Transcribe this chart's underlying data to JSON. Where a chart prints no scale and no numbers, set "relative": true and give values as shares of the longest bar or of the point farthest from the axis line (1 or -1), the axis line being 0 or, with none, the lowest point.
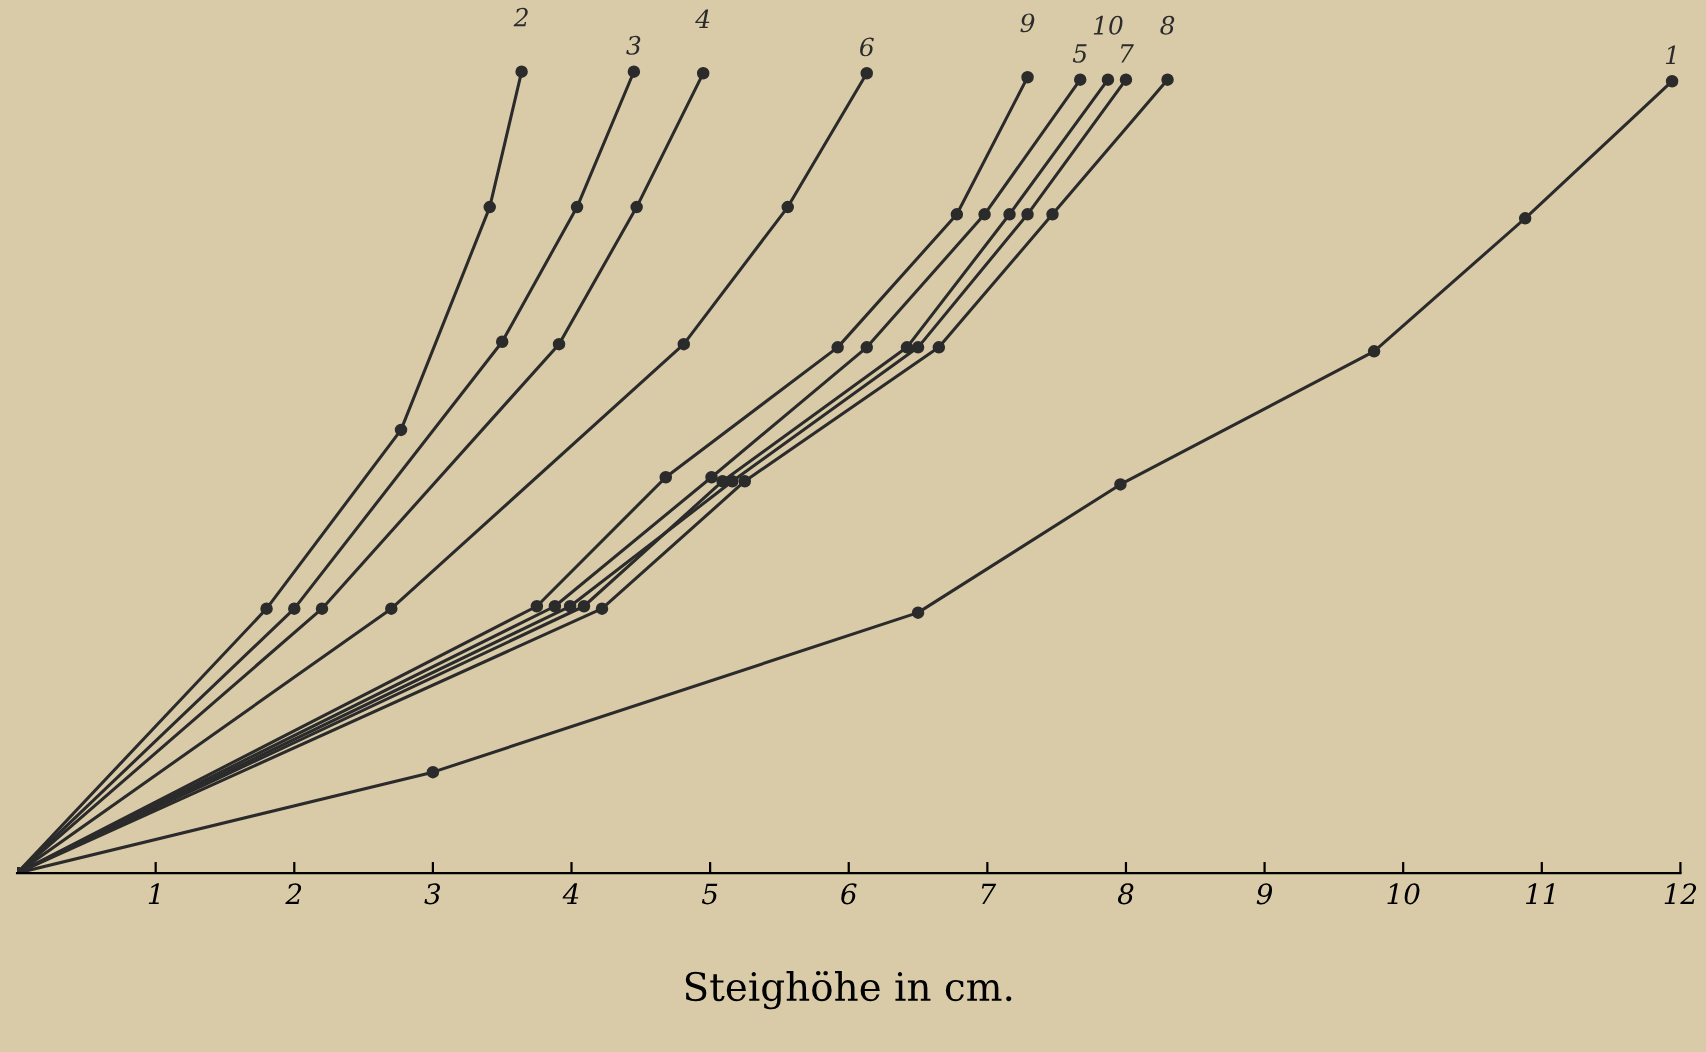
{
  "chart_data": {
    "type": "line",
    "relative": true,
    "xlabel": "Steighöhe in cm.",
    "xlim": [
      0,
      12
    ],
    "xticks": [
      1,
      2,
      3,
      4,
      5,
      6,
      7,
      8,
      9,
      10,
      11,
      12
    ],
    "marker": "circle",
    "grid": false,
    "legend": false,
    "series": [
      {
        "name": "1",
        "color": "#2b2b2b",
        "x": [
          0,
          3.0,
          6.5,
          7.96,
          9.79,
          10.88,
          11.94
        ],
        "values": [
          0,
          0.126,
          0.325,
          0.485,
          0.651,
          0.817,
          0.988
        ]
      },
      {
        "name": "2",
        "color": "#2b2b2b",
        "x": [
          0,
          1.8,
          2.77,
          3.41,
          3.64
        ],
        "values": [
          0,
          0.33,
          0.553,
          0.831,
          1.0
        ]
      },
      {
        "name": "3",
        "color": "#2b2b2b",
        "x": [
          0,
          2.0,
          3.5,
          4.04,
          4.45
        ],
        "values": [
          0,
          0.33,
          0.663,
          0.831,
          1.0
        ]
      },
      {
        "name": "4",
        "color": "#2b2b2b",
        "x": [
          0,
          2.2,
          3.91,
          4.47,
          4.95
        ],
        "values": [
          0,
          0.33,
          0.66,
          0.831,
          0.998
        ]
      },
      {
        "name": "6",
        "color": "#2b2b2b",
        "x": [
          0,
          2.7,
          4.81,
          5.56,
          6.13
        ],
        "values": [
          0,
          0.33,
          0.66,
          0.831,
          0.998
        ]
      },
      {
        "name": "9",
        "color": "#2b2b2b",
        "x": [
          0,
          3.75,
          4.68,
          5.92,
          6.78,
          7.29
        ],
        "values": [
          0,
          0.333,
          0.494,
          0.656,
          0.822,
          0.993
        ]
      },
      {
        "name": "5",
        "color": "#2b2b2b",
        "x": [
          0,
          3.88,
          5.01,
          6.13,
          6.98,
          7.67
        ],
        "values": [
          0,
          0.333,
          0.494,
          0.656,
          0.822,
          0.99
        ]
      },
      {
        "name": "10",
        "color": "#2b2b2b",
        "x": [
          0,
          4.09,
          5.09,
          6.42,
          7.16,
          7.87
        ],
        "values": [
          0,
          0.333,
          0.489,
          0.656,
          0.822,
          0.99
        ]
      },
      {
        "name": "7",
        "color": "#2b2b2b",
        "x": [
          0,
          3.99,
          5.16,
          6.5,
          7.29,
          8.0
        ],
        "values": [
          0,
          0.333,
          0.489,
          0.656,
          0.822,
          0.99
        ]
      },
      {
        "name": "8",
        "color": "#2b2b2b",
        "x": [
          0,
          4.22,
          5.25,
          6.65,
          7.47,
          8.3
        ],
        "values": [
          0,
          0.33,
          0.489,
          0.656,
          0.822,
          0.99
        ]
      }
    ]
  }
}
